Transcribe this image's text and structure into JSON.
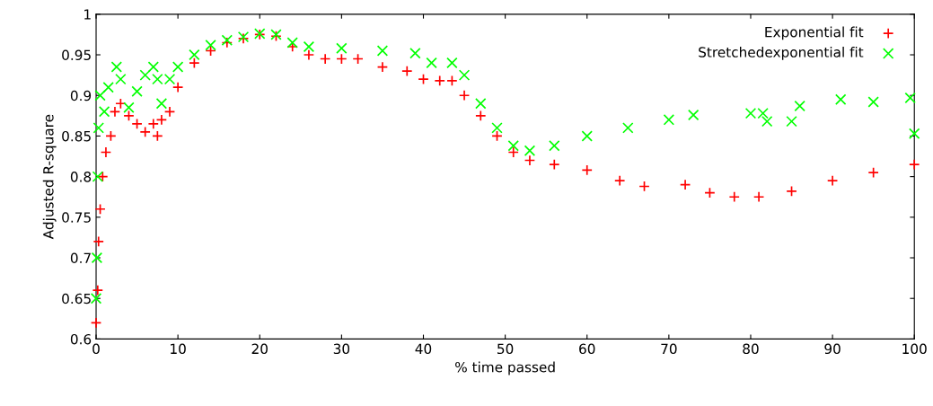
{
  "chart_data": {
    "type": "scatter",
    "xlabel": "% time passed",
    "ylabel": "Adjusted R-square",
    "xlim": [
      0,
      100
    ],
    "ylim": [
      0.6,
      1
    ],
    "xticks": [
      0,
      10,
      20,
      30,
      40,
      50,
      60,
      70,
      80,
      90,
      100
    ],
    "yticks": [
      0.6,
      0.65,
      0.7,
      0.75,
      0.8,
      0.85,
      0.9,
      0.95,
      1
    ],
    "grid": false,
    "legend": "top right",
    "series": [
      {
        "name": "Exponential fit",
        "color": "#ff0000",
        "marker": "plus",
        "x": [
          0,
          0.2,
          0.3,
          0.5,
          0.8,
          1.2,
          1.8,
          2.3,
          3,
          4,
          5,
          6,
          7,
          7.5,
          8,
          9,
          10,
          12,
          14,
          16,
          18,
          20,
          22,
          24,
          26,
          28,
          30,
          32,
          35,
          38,
          40,
          42,
          43.5,
          45,
          47,
          49,
          51,
          53,
          56,
          60,
          64,
          67,
          72,
          75,
          78,
          81,
          85,
          90,
          95,
          100
        ],
        "values": [
          0.62,
          0.66,
          0.72,
          0.76,
          0.8,
          0.83,
          0.85,
          0.88,
          0.89,
          0.875,
          0.865,
          0.855,
          0.865,
          0.85,
          0.87,
          0.88,
          0.91,
          0.94,
          0.955,
          0.965,
          0.97,
          0.975,
          0.973,
          0.96,
          0.95,
          0.945,
          0.945,
          0.945,
          0.935,
          0.93,
          0.92,
          0.918,
          0.918,
          0.9,
          0.875,
          0.85,
          0.83,
          0.82,
          0.815,
          0.808,
          0.795,
          0.788,
          0.79,
          0.78,
          0.775,
          0.775,
          0.782,
          0.795,
          0.805,
          0.815
        ]
      },
      {
        "name": "Stretchedexponential fit",
        "color": "#00ff00",
        "marker": "cross",
        "x": [
          0,
          0.1,
          0.2,
          0.3,
          0.5,
          1,
          1.5,
          2.5,
          3,
          4,
          5,
          6,
          7,
          7.5,
          8,
          9,
          10,
          12,
          14,
          16,
          18,
          20,
          22,
          24,
          26,
          30,
          35,
          39,
          41,
          43.5,
          45,
          47,
          49,
          51,
          53,
          56,
          60,
          65,
          70,
          73,
          80,
          81.5,
          82,
          85,
          86,
          91,
          95,
          99.5,
          100
        ],
        "values": [
          0.65,
          0.7,
          0.8,
          0.86,
          0.9,
          0.88,
          0.91,
          0.935,
          0.92,
          0.885,
          0.905,
          0.925,
          0.935,
          0.92,
          0.89,
          0.92,
          0.935,
          0.95,
          0.962,
          0.968,
          0.972,
          0.976,
          0.975,
          0.965,
          0.96,
          0.958,
          0.955,
          0.952,
          0.94,
          0.94,
          0.925,
          0.89,
          0.86,
          0.838,
          0.832,
          0.838,
          0.85,
          0.86,
          0.87,
          0.876,
          0.878,
          0.878,
          0.868,
          0.868,
          0.887,
          0.895,
          0.892,
          0.897,
          0.853
        ]
      }
    ]
  }
}
